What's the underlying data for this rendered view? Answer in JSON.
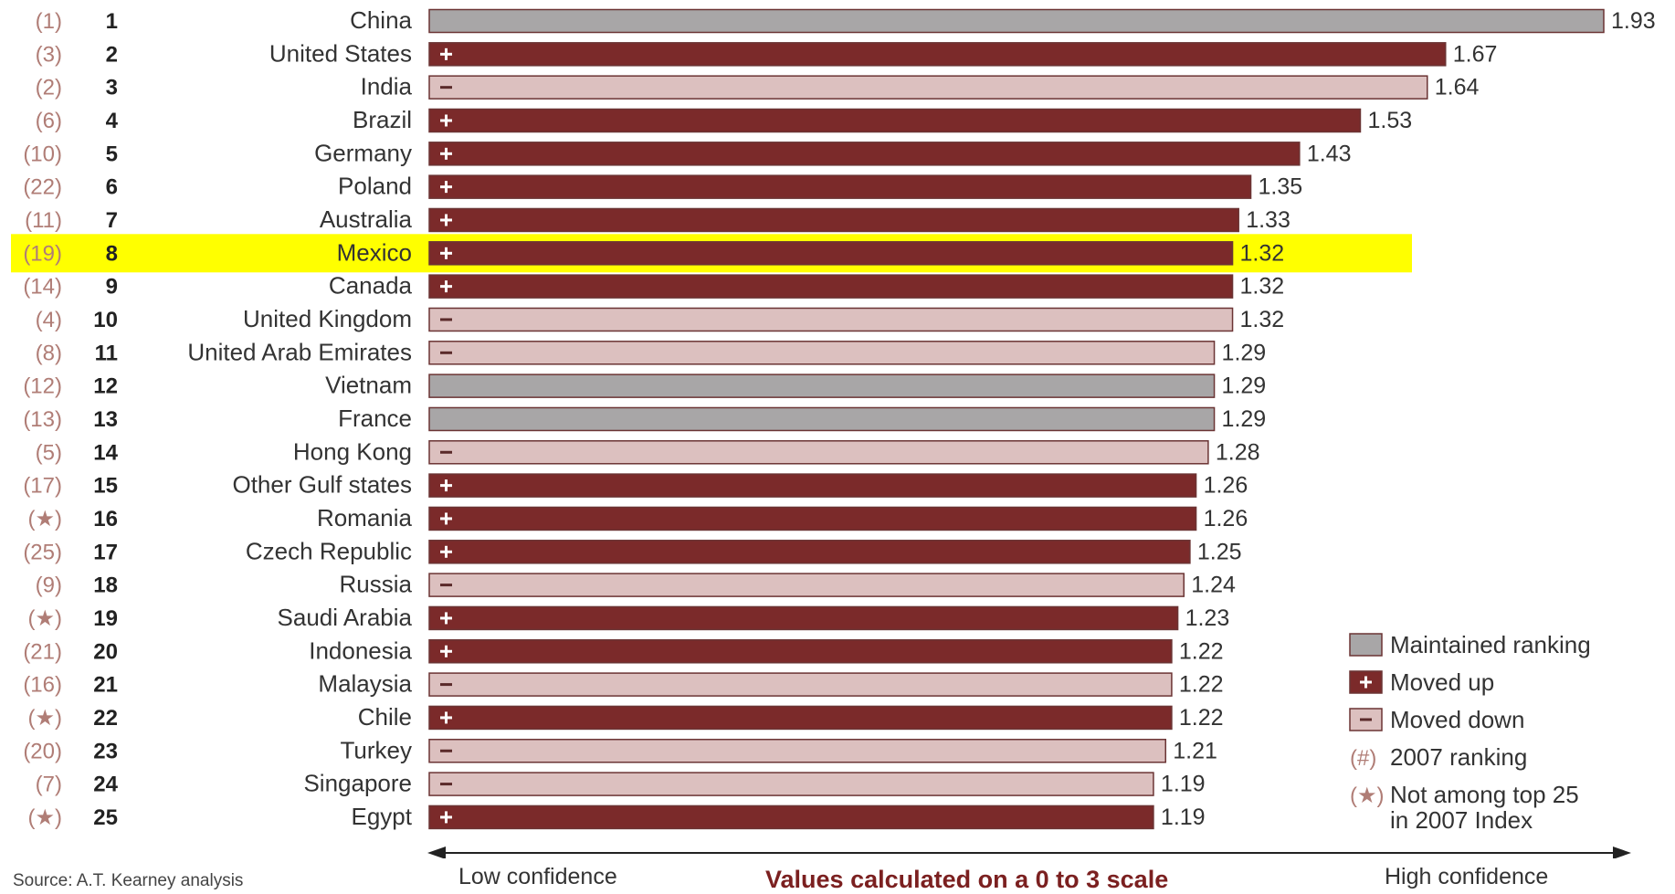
{
  "chart_data": {
    "type": "bar",
    "orientation": "horizontal",
    "scale_range": [
      0,
      3
    ],
    "rows": [
      {
        "prev": "(1)",
        "rank": "1",
        "country": "China",
        "value": 1.93,
        "status": "maintained"
      },
      {
        "prev": "(3)",
        "rank": "2",
        "country": "United States",
        "value": 1.67,
        "status": "up"
      },
      {
        "prev": "(2)",
        "rank": "3",
        "country": "India",
        "value": 1.64,
        "status": "down"
      },
      {
        "prev": "(6)",
        "rank": "4",
        "country": "Brazil",
        "value": 1.53,
        "status": "up"
      },
      {
        "prev": "(10)",
        "rank": "5",
        "country": "Germany",
        "value": 1.43,
        "status": "up"
      },
      {
        "prev": "(22)",
        "rank": "6",
        "country": "Poland",
        "value": 1.35,
        "status": "up"
      },
      {
        "prev": "(11)",
        "rank": "7",
        "country": "Australia",
        "value": 1.33,
        "status": "up"
      },
      {
        "prev": "(19)",
        "rank": "8",
        "country": "Mexico",
        "value": 1.32,
        "status": "up",
        "highlighted": true
      },
      {
        "prev": "(14)",
        "rank": "9",
        "country": "Canada",
        "value": 1.32,
        "status": "up"
      },
      {
        "prev": "(4)",
        "rank": "10",
        "country": "United Kingdom",
        "value": 1.32,
        "status": "down"
      },
      {
        "prev": "(8)",
        "rank": "11",
        "country": "United Arab Emirates",
        "value": 1.29,
        "status": "down"
      },
      {
        "prev": "(12)",
        "rank": "12",
        "country": "Vietnam",
        "value": 1.29,
        "status": "maintained"
      },
      {
        "prev": "(13)",
        "rank": "13",
        "country": "France",
        "value": 1.29,
        "status": "maintained"
      },
      {
        "prev": "(5)",
        "rank": "14",
        "country": "Hong Kong",
        "value": 1.28,
        "status": "down"
      },
      {
        "prev": "(17)",
        "rank": "15",
        "country": "Other Gulf states",
        "value": 1.26,
        "status": "up"
      },
      {
        "prev": "(★)",
        "rank": "16",
        "country": "Romania",
        "value": 1.26,
        "status": "up"
      },
      {
        "prev": "(25)",
        "rank": "17",
        "country": "Czech Republic",
        "value": 1.25,
        "status": "up"
      },
      {
        "prev": "(9)",
        "rank": "18",
        "country": "Russia",
        "value": 1.24,
        "status": "down"
      },
      {
        "prev": "(★)",
        "rank": "19",
        "country": "Saudi Arabia",
        "value": 1.23,
        "status": "up"
      },
      {
        "prev": "(21)",
        "rank": "20",
        "country": "Indonesia",
        "value": 1.22,
        "status": "up"
      },
      {
        "prev": "(16)",
        "rank": "21",
        "country": "Malaysia",
        "value": 1.22,
        "status": "down"
      },
      {
        "prev": "(★)",
        "rank": "22",
        "country": "Chile",
        "value": 1.22,
        "status": "up"
      },
      {
        "prev": "(20)",
        "rank": "23",
        "country": "Turkey",
        "value": 1.21,
        "status": "down"
      },
      {
        "prev": "(7)",
        "rank": "24",
        "country": "Singapore",
        "value": 1.19,
        "status": "down"
      },
      {
        "prev": "(★)",
        "rank": "25",
        "country": "Egypt",
        "value": 1.19,
        "status": "up"
      }
    ],
    "legend": [
      {
        "key": "maintained",
        "label": "Maintained ranking"
      },
      {
        "key": "up",
        "label": "Moved up"
      },
      {
        "key": "down",
        "label": "Moved down"
      },
      {
        "key": "prev",
        "symbol": "(#)",
        "label": "2007 ranking"
      },
      {
        "key": "star",
        "symbol": "(★)",
        "label_lines": [
          "Not among top 25",
          "in 2007 Index"
        ]
      }
    ],
    "legend_placement": "bottom-right",
    "colors": {
      "maintained": "#a8a6a7",
      "up": "#7b2a2a",
      "down": "#dcc0bf",
      "bar_border": "#6b3434",
      "prev_rank_text": "#b07d76",
      "highlight": "#ffff00"
    }
  },
  "footer": {
    "source": "Source: A.T. Kearney analysis",
    "low": "Low confidence",
    "scale_note": "Values calculated on a 0 to 3 scale",
    "high": "High confidence"
  }
}
